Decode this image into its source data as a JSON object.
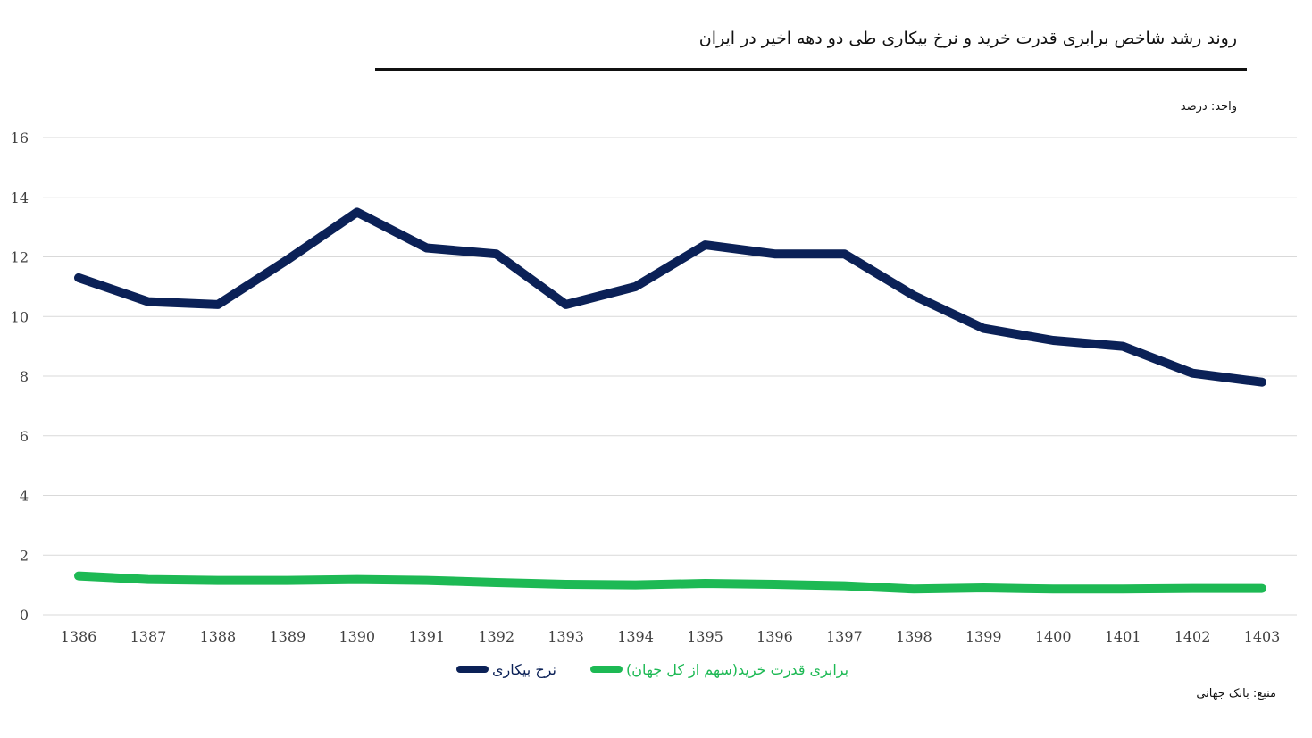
{
  "title": "روند رشد شاخص برابری قدرت خرید و نرخ بیکاری طی دو دهه اخیر در ایران",
  "unit_label": "واحد: درصد",
  "source_label": "منبع: بانک جهانی",
  "chart_data": {
    "type": "line",
    "x": [
      "1386",
      "1387",
      "1388",
      "1389",
      "1390",
      "1391",
      "1392",
      "1393",
      "1394",
      "1395",
      "1396",
      "1397",
      "1398",
      "1399",
      "1400",
      "1401",
      "1402",
      "1403"
    ],
    "ylim": [
      0,
      16
    ],
    "yticks": [
      "0",
      "2",
      "4",
      "6",
      "8",
      "10",
      "12",
      "14",
      "16"
    ],
    "grid": true,
    "legend_position": "bottom",
    "series": [
      {
        "name": "نرخ بیکاری",
        "color": "#0b2157",
        "values": [
          11.3,
          10.5,
          10.4,
          11.9,
          13.5,
          12.3,
          12.1,
          10.4,
          11.0,
          12.4,
          12.1,
          12.1,
          10.7,
          9.6,
          9.2,
          9.0,
          8.1,
          7.8
        ]
      },
      {
        "name": "برابری قدرت خرید(سهم از کل جهان)",
        "color": "#1db954",
        "values": [
          1.3,
          1.18,
          1.15,
          1.15,
          1.18,
          1.15,
          1.08,
          1.02,
          1.0,
          1.05,
          1.02,
          0.97,
          0.86,
          0.9,
          0.86,
          0.86,
          0.88,
          0.88
        ]
      }
    ]
  }
}
